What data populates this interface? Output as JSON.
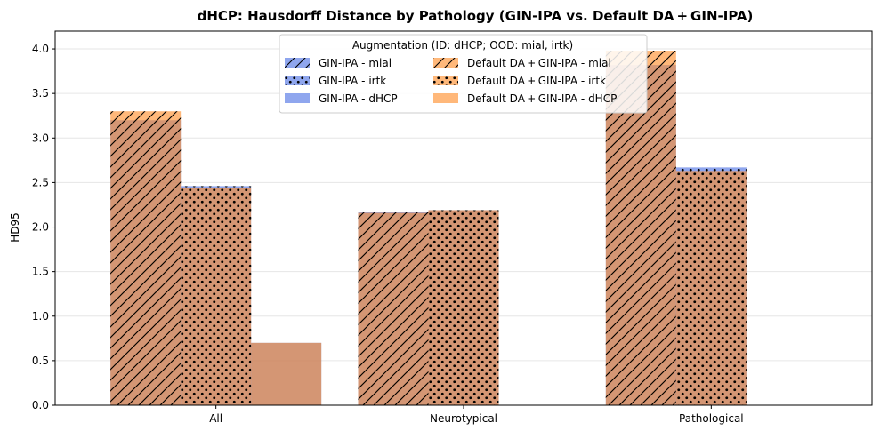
{
  "chart_data": {
    "type": "bar",
    "title": "dHCP: Hausdorff Distance by Pathology (GIN-IPA vs. Default DA + GIN-IPA)",
    "xlabel": "",
    "ylabel": "HD95",
    "categories": [
      "All",
      "Neurotypical",
      "Pathological"
    ],
    "ylim": [
      0,
      4.2
    ],
    "yticks": [
      "0.0",
      "0.5",
      "1.0",
      "1.5",
      "2.0",
      "2.5",
      "3.0",
      "3.5",
      "4.0"
    ],
    "grid": "horizontal",
    "legend_placement": "top-center",
    "legend_title": "Augmentation (ID: dHCP; OOD: mial, irtk)",
    "groups": [
      {
        "name": "mial",
        "hatch": "diagonal"
      },
      {
        "name": "irtk",
        "hatch": "dots"
      },
      {
        "name": "dHCP",
        "hatch": "none"
      }
    ],
    "series": [
      {
        "name": "GIN-IPA - mial",
        "color": "#4a6fe3",
        "group": "mial",
        "values": [
          3.2,
          2.17,
          3.82
        ]
      },
      {
        "name": "GIN-IPA - irtk",
        "color": "#4a6fe3",
        "group": "irtk",
        "values": [
          2.46,
          2.19,
          2.67
        ]
      },
      {
        "name": "GIN-IPA - dHCP",
        "color": "#4a6fe3",
        "group": "dHCP",
        "values": [
          0.7,
          null,
          null
        ]
      },
      {
        "name": "Default DA + GIN-IPA - mial",
        "color": "#ff8c29",
        "group": "mial",
        "values": [
          3.3,
          2.16,
          3.98
        ]
      },
      {
        "name": "Default DA + GIN-IPA - irtk",
        "color": "#ff8c29",
        "group": "irtk",
        "values": [
          2.44,
          2.19,
          2.63
        ]
      },
      {
        "name": "Default DA + GIN-IPA - dHCP",
        "color": "#ff8c29",
        "group": "dHCP",
        "values": [
          0.7,
          null,
          null
        ]
      }
    ]
  }
}
